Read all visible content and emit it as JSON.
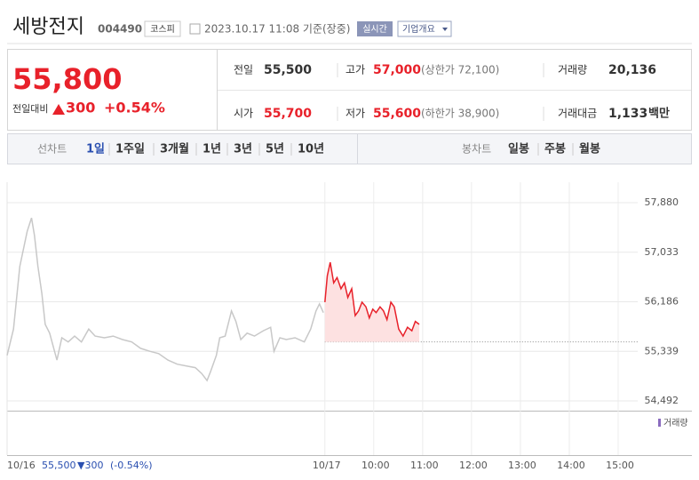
{
  "header": {
    "name": "세방전지",
    "code": "004490",
    "market": "코스피",
    "datetime": "2023.10.17 11:08 기준(장중)",
    "realtime": "실시간",
    "company": "기업개요"
  },
  "quote": {
    "price": "55,800",
    "change_label": "전일대비",
    "change": "300",
    "change_pct": "+0.54%"
  },
  "stats": {
    "prev": {
      "label": "전일",
      "value": "55,500"
    },
    "high": {
      "label": "고가",
      "value": "57,000",
      "limit": "(상한가 72,100)"
    },
    "volume": {
      "label": "거래량",
      "value": "20,136"
    },
    "open": {
      "label": "시가",
      "value": "55,700"
    },
    "low": {
      "label": "저가",
      "value": "55,600",
      "limit": "(하한가 38,900)"
    },
    "amount": {
      "label": "거래대금",
      "value": "1,133",
      "unit": "백만"
    }
  },
  "tabs": {
    "line_label": "선차트",
    "line_periods": [
      "1일",
      "1주일",
      "3개월",
      "1년",
      "3년",
      "5년",
      "10년"
    ],
    "candle_label": "봉차트",
    "candle_periods": [
      "일봉",
      "주봉",
      "월봉"
    ]
  },
  "footer": {
    "prev_close": "55,500",
    "change": "▼300",
    "change_pct": "(-0.54%)"
  },
  "chart_data": {
    "type": "line",
    "xlim": [
      0,
      12.9
    ],
    "ylim": [
      54492,
      57880
    ],
    "yticks": [
      {
        "value": 57880,
        "label": "57,880"
      },
      {
        "value": 57033,
        "label": "57,033"
      },
      {
        "value": 56186,
        "label": "56,186"
      },
      {
        "value": 55339,
        "label": "55,339"
      },
      {
        "value": 54492,
        "label": "54,492"
      }
    ],
    "xticks": [
      {
        "value": 0,
        "label": "10/16"
      },
      {
        "value": 6.5,
        "label": "10/17"
      },
      {
        "value": 7.5,
        "label": "10:00"
      },
      {
        "value": 8.5,
        "label": "11:00"
      },
      {
        "value": 9.5,
        "label": "12:00"
      },
      {
        "value": 10.5,
        "label": "13:00"
      },
      {
        "value": 11.5,
        "label": "14:00"
      },
      {
        "value": 12.5,
        "label": "15:00"
      }
    ],
    "grid": true,
    "baseline": 55500,
    "area_color": "#fde1e1",
    "volume_label": "거래량",
    "series": [
      {
        "color": "#c8c8c8",
        "x": [
          0,
          0.13,
          0.26,
          0.41,
          0.5,
          0.56,
          0.63,
          0.71,
          0.78,
          0.87,
          0.97,
          1.02,
          1.12,
          1.25,
          1.38,
          1.52,
          1.67,
          1.8,
          1.99,
          2.17,
          2.36,
          2.55,
          2.73,
          2.92,
          3.1,
          3.29,
          3.48,
          3.66,
          3.85,
          3.98,
          4.09,
          4.16,
          4.28,
          4.35,
          4.46,
          4.59,
          4.68,
          4.78,
          4.91,
          5.06,
          5.24,
          5.39,
          5.46,
          5.58,
          5.71,
          5.89,
          6.08,
          6.21,
          6.32,
          6.39,
          6.47
        ],
        "values": [
          55270,
          55720,
          56790,
          57390,
          57620,
          57320,
          56790,
          56330,
          55800,
          55650,
          55340,
          55190,
          55570,
          55500,
          55600,
          55500,
          55720,
          55600,
          55570,
          55600,
          55540,
          55500,
          55390,
          55340,
          55300,
          55190,
          55120,
          55090,
          55060,
          54960,
          54840,
          54990,
          55270,
          55570,
          55600,
          56030,
          55850,
          55540,
          55650,
          55600,
          55690,
          55750,
          55340,
          55570,
          55540,
          55570,
          55500,
          55720,
          56030,
          56150,
          56000
        ]
      },
      {
        "color": "#e8212a",
        "area": true,
        "x": [
          6.5,
          6.55,
          6.61,
          6.68,
          6.75,
          6.83,
          6.9,
          6.97,
          7.05,
          7.12,
          7.19,
          7.26,
          7.34,
          7.41,
          7.48,
          7.55,
          7.63,
          7.7,
          7.77,
          7.85,
          7.92,
          8.01,
          8.1,
          8.19,
          8.28,
          8.35,
          8.43
        ],
        "values": [
          56180,
          56630,
          56860,
          56510,
          56600,
          56410,
          56510,
          56260,
          56410,
          55950,
          56030,
          56180,
          56100,
          55910,
          56060,
          56000,
          56100,
          56030,
          55880,
          56180,
          56100,
          55720,
          55600,
          55750,
          55690,
          55850,
          55800
        ]
      }
    ]
  }
}
